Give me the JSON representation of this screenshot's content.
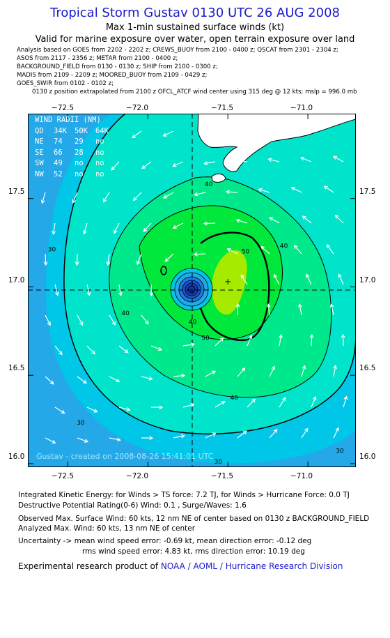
{
  "header": {
    "title": "Tropical Storm Gustav 0130 UTC 26 AUG 2008",
    "subtitle": "Max 1-min sustained surface winds (kt)",
    "valid": "Valid for marine exposure over water, open terrain exposure over land"
  },
  "analysis_lines": [
    "Analysis based on  GOES from 2202 - 2202 z;  CREWS_BUOY from 2100 - 0400 z;  QSCAT from 2301 - 2304 z;",
    "ASOS from 2117 - 2356 z;  METAR from 2100 - 0400 z;",
    "BACKGROUND_FIELD from 0130 - 0130 z;  SHIP from 2100 - 0300 z;",
    "MADIS from 2109 - 2209 z;  MOORED_BUOY from 2109 - 0429 z;",
    "GOES_SWIR from 0102 - 0102 z;",
    "0130 z position extrapolated from 2100 z OFCL_ATCF wind center using 315 deg @ 12 kts; mslp = 996.0 mb"
  ],
  "wind_radii": {
    "title": "WIND RADII (NM)",
    "header": [
      "QD",
      "34K",
      "50K",
      "64K"
    ],
    "rows": [
      [
        "NE",
        "74",
        "29",
        "no"
      ],
      [
        "SE",
        "66",
        "28",
        "no"
      ],
      [
        "SW",
        "49",
        "no",
        "no"
      ],
      [
        "NW",
        "52",
        "no",
        "no"
      ]
    ]
  },
  "watermark": "Gustav - created on 2008-08-26 15:41:01 UTC",
  "chart_data": {
    "type": "heatmap",
    "title": "Tropical Storm Gustav 0130 UTC 26 AUG 2008",
    "xlim": [
      -72.75,
      -70.7
    ],
    "ylim": [
      15.98,
      17.98
    ],
    "x_ticks": [
      -72.5,
      -72.0,
      -71.5,
      -71.0
    ],
    "x_tick_labels": [
      "−72.5",
      "−72.0",
      "−71.5",
      "−71.0"
    ],
    "y_ticks": [
      16.0,
      16.5,
      17.0,
      17.5
    ],
    "y_tick_labels": [
      "16.0",
      "16.5",
      "17.0",
      "17.5"
    ],
    "storm_center": {
      "lon": -71.72,
      "lat": 16.94
    },
    "max_wind_location": {
      "lon": -71.5,
      "lat": 17.03
    },
    "contour_levels": [
      30,
      40,
      50
    ],
    "contour_labels": [
      {
        "text": "30",
        "lon": -72.6,
        "lat": 17.2
      },
      {
        "text": "40",
        "lon": -71.62,
        "lat": 17.57
      },
      {
        "text": "40",
        "lon": -71.15,
        "lat": 17.22
      },
      {
        "text": "40",
        "lon": -72.14,
        "lat": 16.84
      },
      {
        "text": "40",
        "lon": -71.46,
        "lat": 16.36
      },
      {
        "text": "40",
        "lon": -71.72,
        "lat": 16.79
      },
      {
        "text": "50",
        "lon": -71.39,
        "lat": 17.19
      },
      {
        "text": "50",
        "lon": -71.64,
        "lat": 16.7
      },
      {
        "text": "30",
        "lon": -72.42,
        "lat": 16.22
      },
      {
        "text": "30",
        "lon": -71.56,
        "lat": 16.0
      },
      {
        "text": "30",
        "lon": -70.8,
        "lat": 16.06
      }
    ],
    "colors": {
      "ocean_outer": "#24a8e8",
      "band_20_30": "#00c6e8",
      "band_30_40": "#00e4cc",
      "band_40_50": "#00e88c",
      "band_50_60": "#00e83c",
      "band_60": "#a6ea00",
      "land": "#ffffff",
      "contour": "#000000",
      "core": "#1030b8"
    }
  },
  "footer": {
    "ike": "Integrated Kinetic Energy:  for Winds > TS force: 7.2 TJ,  for Winds > Hurricane Force: 0.0 TJ",
    "dpr": "Destructive Potential Rating(0-6)   Wind: 0.1 , Surge/Waves: 1.6",
    "observed": "Observed Max. Surface Wind: 60 kts, 12 nm NE of center based on 0130 z BACKGROUND_FIELD",
    "analyzed": "Analyzed Max. Wind: 60 kts, 13 nm NE of center",
    "uncertainty1": "Uncertainty -> mean wind speed error:  -0.69 kt,   mean direction error:  -0.12 deg",
    "uncertainty2": "rms wind speed error: 4.83 kt,   rms direction error: 10.19 deg",
    "credit_prefix": "Experimental research product of ",
    "credit_link": "NOAA / AOML / Hurricane Research Division"
  }
}
